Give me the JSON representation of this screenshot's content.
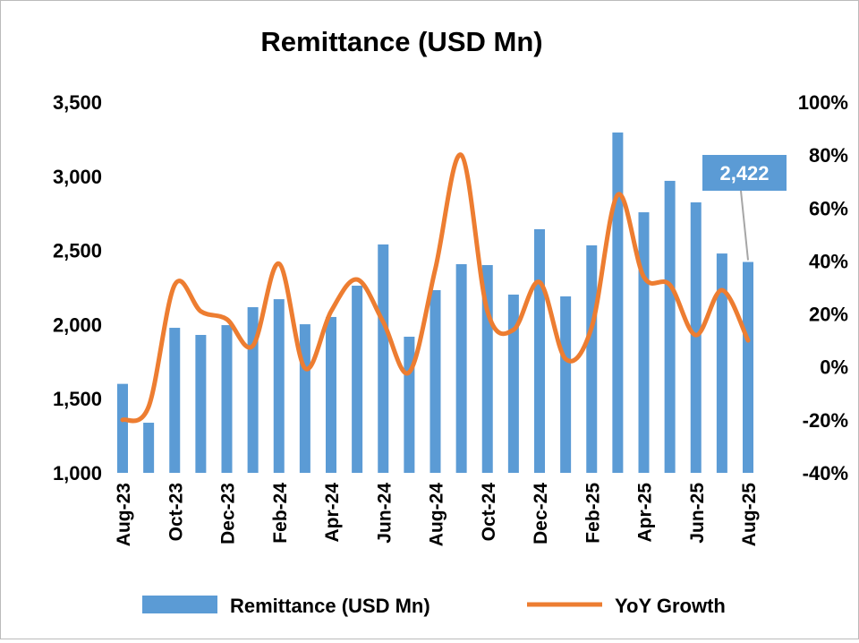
{
  "chart_data": {
    "type": "bar",
    "title": "Remittance (USD Mn)",
    "categories": [
      "Aug-23",
      "Sep-23",
      "Oct-23",
      "Nov-23",
      "Dec-23",
      "Jan-24",
      "Feb-24",
      "Mar-24",
      "Apr-24",
      "May-24",
      "Jun-24",
      "Jul-24",
      "Aug-24",
      "Sep-24",
      "Oct-24",
      "Nov-24",
      "Dec-24",
      "Jan-25",
      "Feb-25",
      "Mar-25",
      "Apr-25",
      "May-25",
      "Jun-25",
      "Jul-25",
      "Aug-25"
    ],
    "x_tick_labels": [
      "Aug-23",
      "Oct-23",
      "Dec-23",
      "Feb-24",
      "Apr-24",
      "Jun-24",
      "Aug-24",
      "Oct-24",
      "Dec-24",
      "Feb-25",
      "Apr-25",
      "Jun-25",
      "Aug-25"
    ],
    "series": [
      {
        "name": "Remittance (USD Mn)",
        "type": "bar",
        "axis": "left",
        "color": "#5B9BD5",
        "values": [
          1600,
          1338,
          1978,
          1930,
          1996,
          2117,
          2171,
          2002,
          2051,
          2262,
          2540,
          1918,
          2232,
          2407,
          2401,
          2202,
          2643,
          2190,
          2534,
          3295,
          2757,
          2969,
          2824,
          2479,
          2422
        ]
      },
      {
        "name": "YoY Growth",
        "type": "line",
        "axis": "right",
        "color": "#ED7D31",
        "values": [
          -20,
          -15,
          31,
          21,
          18,
          8,
          39,
          -0.5,
          21,
          33,
          17,
          -2,
          37,
          80,
          21,
          14,
          32,
          3,
          15,
          65,
          34,
          31,
          12,
          29,
          10
        ]
      }
    ],
    "y_left": {
      "range": [
        1000,
        3500
      ],
      "ticks": [
        "1,000",
        "1,500",
        "2,000",
        "2,500",
        "3,000",
        "3,500"
      ]
    },
    "y_right": {
      "range": [
        -40,
        100
      ],
      "ticks": [
        "-40%",
        "-20%",
        "0%",
        "20%",
        "40%",
        "60%",
        "80%",
        "100%"
      ]
    },
    "annotation": {
      "text": "2,422",
      "category": "Aug-25",
      "color": "#5B9BD5"
    },
    "legend": {
      "placement": "bottom",
      "entries": [
        "Remittance (USD Mn)",
        "YoY Growth"
      ]
    },
    "grid": false
  }
}
